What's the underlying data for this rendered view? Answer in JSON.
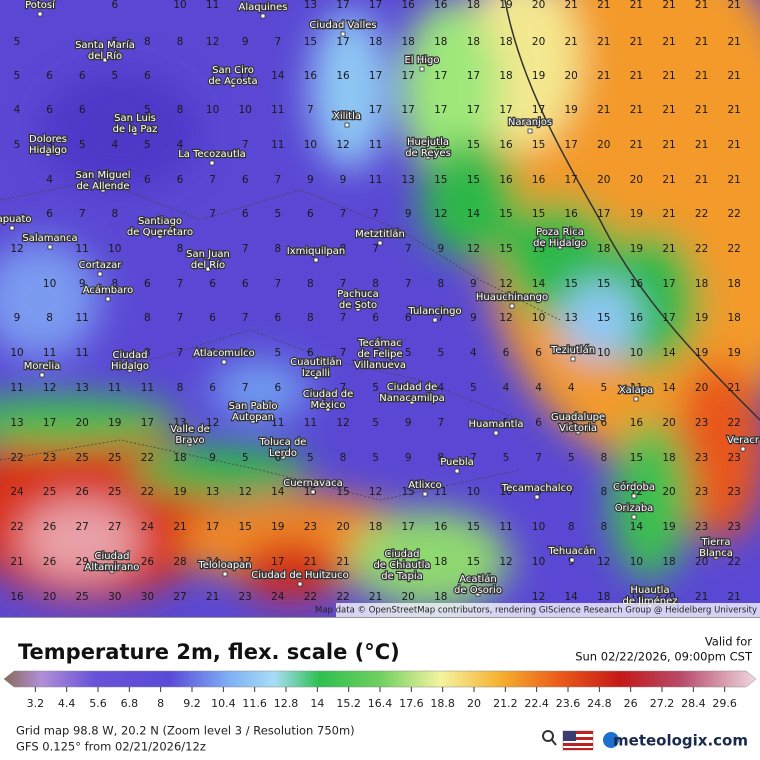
{
  "map": {
    "grid": [
      [
        null,
        null,
        null,
        6,
        null,
        10,
        11,
        null,
        null,
        13,
        17,
        17,
        16,
        16,
        18,
        19,
        20,
        21,
        21,
        21,
        21,
        21,
        21
      ],
      [
        5,
        null,
        null,
        5,
        8,
        8,
        12,
        9,
        7,
        15,
        17,
        18,
        18,
        18,
        18,
        18,
        20,
        21,
        21,
        21,
        21,
        21,
        21
      ],
      [
        5,
        6,
        6,
        5,
        6,
        null,
        null,
        11,
        14,
        16,
        16,
        17,
        17,
        17,
        17,
        18,
        19,
        20,
        21,
        21,
        21,
        21,
        21
      ],
      [
        4,
        6,
        6,
        null,
        5,
        8,
        10,
        10,
        11,
        7,
        null,
        17,
        17,
        17,
        17,
        17,
        17,
        19,
        21,
        21,
        21,
        21,
        21
      ],
      [
        5,
        3,
        5,
        4,
        5,
        4,
        null,
        7,
        11,
        10,
        12,
        11,
        null,
        15,
        15,
        16,
        15,
        17,
        20,
        21,
        21,
        21,
        21
      ],
      [
        null,
        4,
        null,
        null,
        6,
        6,
        7,
        6,
        7,
        9,
        9,
        11,
        13,
        15,
        15,
        16,
        16,
        17,
        20,
        20,
        21,
        21,
        21
      ],
      [
        null,
        6,
        7,
        8,
        null,
        null,
        7,
        6,
        5,
        6,
        7,
        7,
        9,
        12,
        14,
        15,
        15,
        16,
        17,
        19,
        21,
        22,
        22
      ],
      [
        12,
        null,
        11,
        10,
        null,
        8,
        null,
        7,
        8,
        null,
        8,
        7,
        7,
        9,
        12,
        15,
        15,
        null,
        18,
        19,
        21,
        22,
        22
      ],
      [
        null,
        10,
        9,
        8,
        6,
        7,
        6,
        6,
        7,
        8,
        7,
        8,
        7,
        8,
        9,
        12,
        14,
        15,
        15,
        16,
        17,
        18,
        18
      ],
      [
        9,
        8,
        11,
        null,
        8,
        7,
        6,
        7,
        6,
        8,
        7,
        6,
        6,
        7,
        9,
        12,
        10,
        13,
        15,
        16,
        17,
        19,
        18
      ],
      [
        10,
        11,
        11,
        null,
        8,
        7,
        6,
        6,
        5,
        6,
        7,
        7,
        5,
        5,
        4,
        6,
        6,
        null,
        10,
        10,
        14,
        19,
        19
      ],
      [
        11,
        12,
        13,
        11,
        11,
        8,
        6,
        7,
        6,
        null,
        7,
        5,
        5,
        4,
        5,
        4,
        4,
        4,
        5,
        11,
        14,
        20,
        21
      ],
      [
        13,
        17,
        20,
        19,
        17,
        13,
        12,
        null,
        11,
        11,
        12,
        5,
        9,
        7,
        null,
        5,
        6,
        5,
        6,
        16,
        20,
        23,
        22
      ],
      [
        22,
        23,
        25,
        25,
        22,
        18,
        9,
        5,
        6,
        5,
        8,
        5,
        9,
        8,
        7,
        5,
        7,
        5,
        8,
        15,
        18,
        23,
        23
      ],
      [
        24,
        25,
        26,
        25,
        22,
        19,
        13,
        12,
        14,
        15,
        15,
        12,
        15,
        11,
        10,
        10,
        9,
        7,
        8,
        12,
        20,
        23,
        23
      ],
      [
        22,
        26,
        27,
        27,
        24,
        21,
        17,
        15,
        19,
        23,
        20,
        18,
        17,
        16,
        15,
        11,
        10,
        8,
        8,
        14,
        19,
        23,
        23
      ],
      [
        21,
        26,
        29,
        null,
        26,
        28,
        24,
        17,
        17,
        21,
        21,
        null,
        null,
        18,
        15,
        12,
        10,
        9,
        12,
        10,
        18,
        20,
        22
      ],
      [
        16,
        20,
        25,
        30,
        30,
        27,
        21,
        23,
        24,
        22,
        22,
        21,
        20,
        18,
        null,
        null,
        12,
        14,
        18,
        14,
        20,
        21,
        21
      ]
    ],
    "places": [
      [
        "Potosí"
      ],
      [
        "Alaquines"
      ],
      [
        "Ciudad Valles"
      ],
      [
        "Santa María",
        "del Río"
      ],
      [
        "San Ciro",
        "de Acosta"
      ],
      [
        "El Higo"
      ],
      [
        "San Luis",
        "de la Paz"
      ],
      [
        "Xilitla"
      ],
      [
        "Naranjos"
      ],
      [
        "Dolores",
        "Hidalgo"
      ],
      [
        "La Tecozautla"
      ],
      [
        "Huejutla",
        "de Reyes"
      ],
      [
        "San Miguel",
        "de Allende"
      ],
      [
        "rapuato"
      ],
      [
        "Santiago",
        "de Querétaro"
      ],
      [
        "Metztitlán"
      ],
      [
        "Poza Rica",
        "de Hidalgo"
      ],
      [
        "Salamanca"
      ],
      [
        "Cortazar"
      ],
      [
        "San Juan",
        "del Río"
      ],
      [
        "Ixmiquilpan"
      ],
      [
        "Pachuca",
        "de Soto"
      ],
      [
        "Huauchinango"
      ],
      [
        "Acámbaro"
      ],
      [
        "Tulancingo"
      ],
      [
        "Tecámac",
        "de Felipe",
        "Villanueva"
      ],
      [
        "Teziutlán"
      ],
      [
        "Morelia"
      ],
      [
        "Ciudad",
        "Hidalgo"
      ],
      [
        "Atlacomulco"
      ],
      [
        "Cuautitlán",
        "Izcalli"
      ],
      [
        "Ciudad de",
        "México"
      ],
      [
        "Ciudad de",
        "Nanacamilpa"
      ],
      [
        "Xalapa"
      ],
      [
        "San Pablo",
        "Autopan"
      ],
      [
        "Huamantla"
      ],
      [
        "Guadalupe",
        "Victoria"
      ],
      [
        "Veracr"
      ],
      [
        "Valle de",
        "Bravo"
      ],
      [
        "Toluca de",
        "Lerdo"
      ],
      [
        "Puebla"
      ],
      [
        "Cuernavaca"
      ],
      [
        "Atlixco"
      ],
      [
        "Tecamachalco"
      ],
      [
        "Córdoba"
      ],
      [
        "Orizaba"
      ],
      [
        "Tehuacán"
      ],
      [
        "Tierra",
        "Blanca"
      ],
      [
        "Ciudad",
        "Altamirano"
      ],
      [
        "Teloloapan"
      ],
      [
        "Ciudad de Huitzuco"
      ],
      [
        "Ciudad",
        "de Chiautla",
        "de Tapia"
      ],
      [
        "Acatlán",
        "de Osorio"
      ],
      [
        "Huautla",
        "de Jiménez"
      ]
    ],
    "attribution": "Map data © OpenStreetMap contributors, rendering GIScience Research Group @ Heidelberg University"
  },
  "legend": {
    "title": "Temperature 2m, flex. scale (°C)",
    "valid_label": "Valid for",
    "valid_time": "Sun 02/22/2026, 09:00pm CST",
    "ticks": [
      3.2,
      4.4,
      5.6,
      6.8,
      8,
      9.2,
      10.4,
      11.6,
      12.8,
      14,
      15.2,
      16.4,
      17.6,
      18.8,
      20,
      21.2,
      22.4,
      23.6,
      24.8,
      26,
      27.2,
      28.4,
      29.6
    ],
    "range": [
      2,
      30.8
    ]
  },
  "footer": {
    "grid_info": "Grid map 98.8 W, 20.2 N (Zoom level 3 / Resolution 750m)",
    "model_info": "GFS 0.125° from  02/21/2026/12z",
    "brand": "meteologix.com"
  }
}
